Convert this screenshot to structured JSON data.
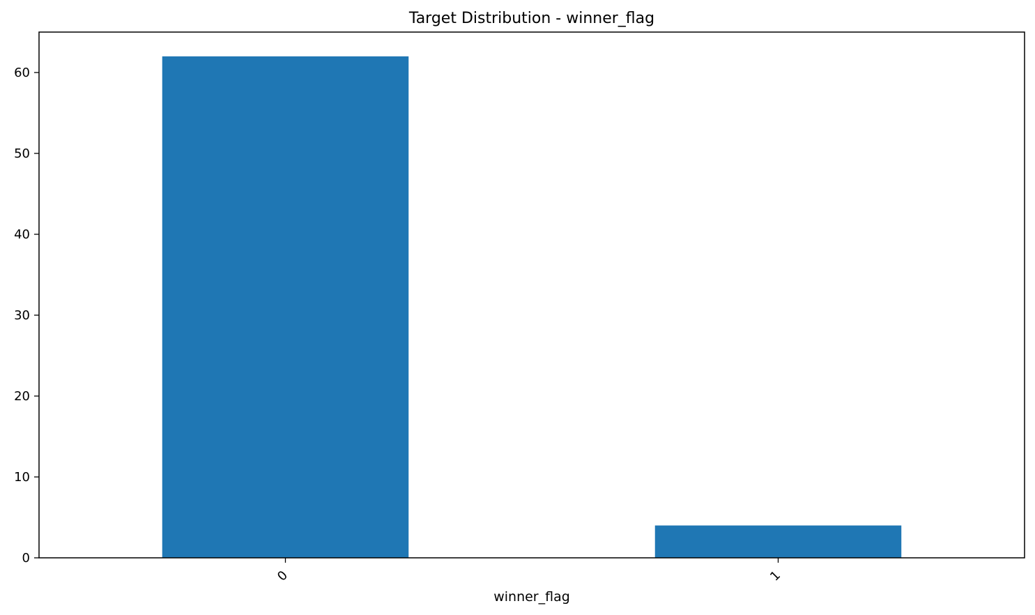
{
  "chart_data": {
    "type": "bar",
    "title": "Target Distribution - winner_flag",
    "xlabel": "winner_flag",
    "ylabel": "",
    "categories": [
      "0",
      "1"
    ],
    "values": [
      62,
      4
    ],
    "ylim": [
      0,
      65
    ],
    "yticks": [
      0,
      10,
      20,
      30,
      40,
      50,
      60
    ],
    "xtick_rotation": 45,
    "bar_color": "#1f77b4",
    "grid": false,
    "legend": "none"
  }
}
